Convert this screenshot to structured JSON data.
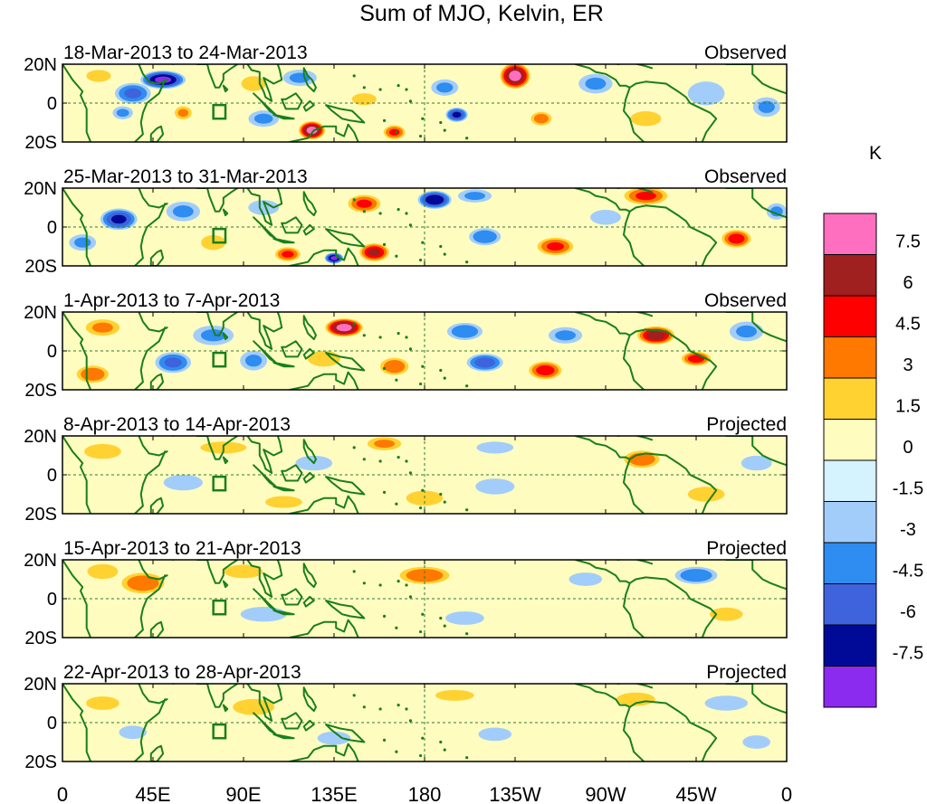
{
  "chart_data": {
    "type": "heatmap",
    "title": "Sum of MJO, Kelvin, ER",
    "xlabel": "",
    "ylabel": "",
    "x_ticks": [
      "0",
      "45E",
      "90E",
      "135E",
      "180",
      "135W",
      "90W",
      "45W",
      "0"
    ],
    "x_tick_values": [
      0,
      45,
      90,
      135,
      180,
      225,
      270,
      315,
      360
    ],
    "y_ticks": [
      "20N",
      "0",
      "20S"
    ],
    "y_tick_values": [
      20,
      0,
      -20
    ],
    "xlim": [
      0,
      360
    ],
    "ylim": [
      -20,
      20
    ],
    "colorbar": {
      "unit": "K",
      "labels": [
        "7.5",
        "6",
        "4.5",
        "3",
        "1.5",
        "0",
        "-1.5",
        "-3",
        "-4.5",
        "-6",
        "-7.5"
      ],
      "levels": [
        7.5,
        6,
        4.5,
        3,
        1.5,
        0,
        -1.5,
        -3,
        -4.5,
        -6,
        -7.5
      ],
      "colors": [
        "#ff6fc0",
        "#a01f1f",
        "#ff0000",
        "#ff7800",
        "#ffd232",
        "#fffcc0",
        "#d4f2ff",
        "#a2cdfa",
        "#2f8cf0",
        "#3e63dc",
        "#000a96",
        "#8a2bef"
      ]
    },
    "land_color": "#1a7f1a",
    "panels": [
      {
        "period": "18-Mar-2013 to 24-Mar-2013",
        "status": "Observed",
        "anomalies": [
          {
            "lon": 50,
            "lat": 12,
            "value": -7.5,
            "sx": 12,
            "sy": 5
          },
          {
            "lon": 35,
            "lat": 5,
            "value": -4.5,
            "sx": 10,
            "sy": 6
          },
          {
            "lon": 18,
            "lat": 14,
            "value": 2.0,
            "sx": 8,
            "sy": 4
          },
          {
            "lon": 60,
            "lat": -5,
            "value": 3.0,
            "sx": 5,
            "sy": 4
          },
          {
            "lon": 30,
            "lat": -5,
            "value": -3.0,
            "sx": 6,
            "sy": 4
          },
          {
            "lon": 95,
            "lat": 10,
            "value": 2.0,
            "sx": 8,
            "sy": 5
          },
          {
            "lon": 100,
            "lat": -8,
            "value": -3.0,
            "sx": 9,
            "sy": 5
          },
          {
            "lon": 124,
            "lat": -14,
            "value": 7.8,
            "sx": 7,
            "sy": 5
          },
          {
            "lon": 118,
            "lat": 13,
            "value": -3.0,
            "sx": 10,
            "sy": 5
          },
          {
            "lon": 150,
            "lat": 2,
            "value": 2.0,
            "sx": 8,
            "sy": 4
          },
          {
            "lon": 165,
            "lat": -15,
            "value": 4.5,
            "sx": 6,
            "sy": 4
          },
          {
            "lon": 190,
            "lat": 8,
            "value": -3.0,
            "sx": 8,
            "sy": 5
          },
          {
            "lon": 196,
            "lat": -6,
            "value": -6.0,
            "sx": 6,
            "sy": 4
          },
          {
            "lon": 225,
            "lat": 14,
            "value": 7.8,
            "sx": 8,
            "sy": 7
          },
          {
            "lon": 238,
            "lat": -8,
            "value": 3.5,
            "sx": 6,
            "sy": 4
          },
          {
            "lon": 265,
            "lat": 10,
            "value": -3.0,
            "sx": 10,
            "sy": 6
          },
          {
            "lon": 290,
            "lat": -8,
            "value": 2.0,
            "sx": 10,
            "sy": 5
          },
          {
            "lon": 320,
            "lat": 5,
            "value": -2.0,
            "sx": 12,
            "sy": 8
          },
          {
            "lon": 350,
            "lat": -2,
            "value": -3.0,
            "sx": 8,
            "sy": 6
          }
        ]
      },
      {
        "period": "25-Mar-2013 to 31-Mar-2013",
        "status": "Observed",
        "anomalies": [
          {
            "lon": 28,
            "lat": 4,
            "value": -6.0,
            "sx": 10,
            "sy": 6
          },
          {
            "lon": 10,
            "lat": -8,
            "value": -3.0,
            "sx": 8,
            "sy": 5
          },
          {
            "lon": 60,
            "lat": 8,
            "value": -3.0,
            "sx": 10,
            "sy": 6
          },
          {
            "lon": 75,
            "lat": -8,
            "value": 2.0,
            "sx": 8,
            "sy": 5
          },
          {
            "lon": 100,
            "lat": 10,
            "value": -2.0,
            "sx": 10,
            "sy": 5
          },
          {
            "lon": 112,
            "lat": -14,
            "value": 4.5,
            "sx": 7,
            "sy": 4
          },
          {
            "lon": 135,
            "lat": -16,
            "value": -7.5,
            "sx": 5,
            "sy": 3
          },
          {
            "lon": 155,
            "lat": -13,
            "value": 6.0,
            "sx": 8,
            "sy": 5
          },
          {
            "lon": 150,
            "lat": 12,
            "value": 4.5,
            "sx": 9,
            "sy": 5
          },
          {
            "lon": 185,
            "lat": 14,
            "value": -7.0,
            "sx": 9,
            "sy": 5
          },
          {
            "lon": 205,
            "lat": 16,
            "value": -3.0,
            "sx": 10,
            "sy": 4
          },
          {
            "lon": 210,
            "lat": -5,
            "value": -4.0,
            "sx": 9,
            "sy": 5
          },
          {
            "lon": 245,
            "lat": -10,
            "value": 4.5,
            "sx": 10,
            "sy": 5
          },
          {
            "lon": 290,
            "lat": 16,
            "value": 4.5,
            "sx": 12,
            "sy": 5
          },
          {
            "lon": 270,
            "lat": 5,
            "value": -2.0,
            "sx": 10,
            "sy": 5
          },
          {
            "lon": 335,
            "lat": -6,
            "value": 5.0,
            "sx": 8,
            "sy": 5
          },
          {
            "lon": 355,
            "lat": 8,
            "value": -3.0,
            "sx": 6,
            "sy": 5
          }
        ]
      },
      {
        "period": "1-Apr-2013 to 7-Apr-2013",
        "status": "Observed",
        "anomalies": [
          {
            "lon": 20,
            "lat": 12,
            "value": 3.0,
            "sx": 10,
            "sy": 5
          },
          {
            "lon": 15,
            "lat": -12,
            "value": 4.0,
            "sx": 9,
            "sy": 5
          },
          {
            "lon": 55,
            "lat": -6,
            "value": -4.5,
            "sx": 10,
            "sy": 6
          },
          {
            "lon": 75,
            "lat": 8,
            "value": -3.0,
            "sx": 12,
            "sy": 6
          },
          {
            "lon": 95,
            "lat": -5,
            "value": -3.0,
            "sx": 8,
            "sy": 6
          },
          {
            "lon": 140,
            "lat": 12,
            "value": 7.8,
            "sx": 10,
            "sy": 5
          },
          {
            "lon": 130,
            "lat": -4,
            "value": 2.5,
            "sx": 10,
            "sy": 5
          },
          {
            "lon": 165,
            "lat": -8,
            "value": 4.0,
            "sx": 8,
            "sy": 5
          },
          {
            "lon": 200,
            "lat": 10,
            "value": -4.0,
            "sx": 10,
            "sy": 5
          },
          {
            "lon": 210,
            "lat": -6,
            "value": -5.0,
            "sx": 10,
            "sy": 5
          },
          {
            "lon": 240,
            "lat": -10,
            "value": 5.0,
            "sx": 9,
            "sy": 5
          },
          {
            "lon": 250,
            "lat": 8,
            "value": -3.0,
            "sx": 10,
            "sy": 5
          },
          {
            "lon": 295,
            "lat": 8,
            "value": 6.5,
            "sx": 10,
            "sy": 5
          },
          {
            "lon": 315,
            "lat": -4,
            "value": 5.0,
            "sx": 8,
            "sy": 4
          },
          {
            "lon": 340,
            "lat": 10,
            "value": -3.0,
            "sx": 10,
            "sy": 6
          }
        ]
      },
      {
        "period": "8-Apr-2013 to 14-Apr-2013",
        "status": "Projected",
        "anomalies": [
          {
            "lon": 20,
            "lat": 12,
            "value": 2.0,
            "sx": 12,
            "sy": 5
          },
          {
            "lon": 80,
            "lat": 14,
            "value": 2.0,
            "sx": 15,
            "sy": 4
          },
          {
            "lon": 60,
            "lat": -4,
            "value": -2.5,
            "sx": 12,
            "sy": 5
          },
          {
            "lon": 110,
            "lat": -14,
            "value": 2.0,
            "sx": 12,
            "sy": 4
          },
          {
            "lon": 125,
            "lat": 6,
            "value": -2.0,
            "sx": 12,
            "sy": 5
          },
          {
            "lon": 160,
            "lat": 16,
            "value": 3.0,
            "sx": 10,
            "sy": 4
          },
          {
            "lon": 180,
            "lat": -12,
            "value": 2.0,
            "sx": 12,
            "sy": 5
          },
          {
            "lon": 215,
            "lat": 14,
            "value": -2.0,
            "sx": 12,
            "sy": 4
          },
          {
            "lon": 215,
            "lat": -6,
            "value": -2.5,
            "sx": 12,
            "sy": 5
          },
          {
            "lon": 288,
            "lat": 8,
            "value": 4.0,
            "sx": 10,
            "sy": 5
          },
          {
            "lon": 320,
            "lat": -10,
            "value": 2.0,
            "sx": 12,
            "sy": 5
          },
          {
            "lon": 345,
            "lat": 6,
            "value": -2.0,
            "sx": 10,
            "sy": 5
          }
        ]
      },
      {
        "period": "15-Apr-2013 to 21-Apr-2013",
        "status": "Projected",
        "anomalies": [
          {
            "lon": 40,
            "lat": 8,
            "value": 4.0,
            "sx": 12,
            "sy": 6
          },
          {
            "lon": 20,
            "lat": 14,
            "value": 2.0,
            "sx": 10,
            "sy": 5
          },
          {
            "lon": 90,
            "lat": 14,
            "value": 1.5,
            "sx": 14,
            "sy": 5
          },
          {
            "lon": 100,
            "lat": -8,
            "value": -2.0,
            "sx": 15,
            "sy": 5
          },
          {
            "lon": 180,
            "lat": 12,
            "value": 4.0,
            "sx": 14,
            "sy": 5
          },
          {
            "lon": 200,
            "lat": -10,
            "value": -1.5,
            "sx": 14,
            "sy": 5
          },
          {
            "lon": 260,
            "lat": 10,
            "value": -1.5,
            "sx": 12,
            "sy": 5
          },
          {
            "lon": 315,
            "lat": 12,
            "value": -4.0,
            "sx": 12,
            "sy": 5
          },
          {
            "lon": 330,
            "lat": -8,
            "value": 1.5,
            "sx": 12,
            "sy": 5
          }
        ]
      },
      {
        "period": "22-Apr-2013 to 28-Apr-2013",
        "status": "Projected",
        "anomalies": [
          {
            "lon": 20,
            "lat": 10,
            "value": 1.5,
            "sx": 12,
            "sy": 5
          },
          {
            "lon": 35,
            "lat": -5,
            "value": -1.5,
            "sx": 10,
            "sy": 5
          },
          {
            "lon": 95,
            "lat": 8,
            "value": 1.5,
            "sx": 15,
            "sy": 6
          },
          {
            "lon": 135,
            "lat": -8,
            "value": -1.5,
            "sx": 12,
            "sy": 5
          },
          {
            "lon": 195,
            "lat": 14,
            "value": 1.5,
            "sx": 14,
            "sy": 4
          },
          {
            "lon": 215,
            "lat": -6,
            "value": -1.5,
            "sx": 12,
            "sy": 5
          },
          {
            "lon": 285,
            "lat": 12,
            "value": 1.5,
            "sx": 14,
            "sy": 5
          },
          {
            "lon": 330,
            "lat": 10,
            "value": -2.0,
            "sx": 14,
            "sy": 5
          },
          {
            "lon": 345,
            "lat": -10,
            "value": -1.5,
            "sx": 10,
            "sy": 5
          }
        ]
      }
    ]
  }
}
